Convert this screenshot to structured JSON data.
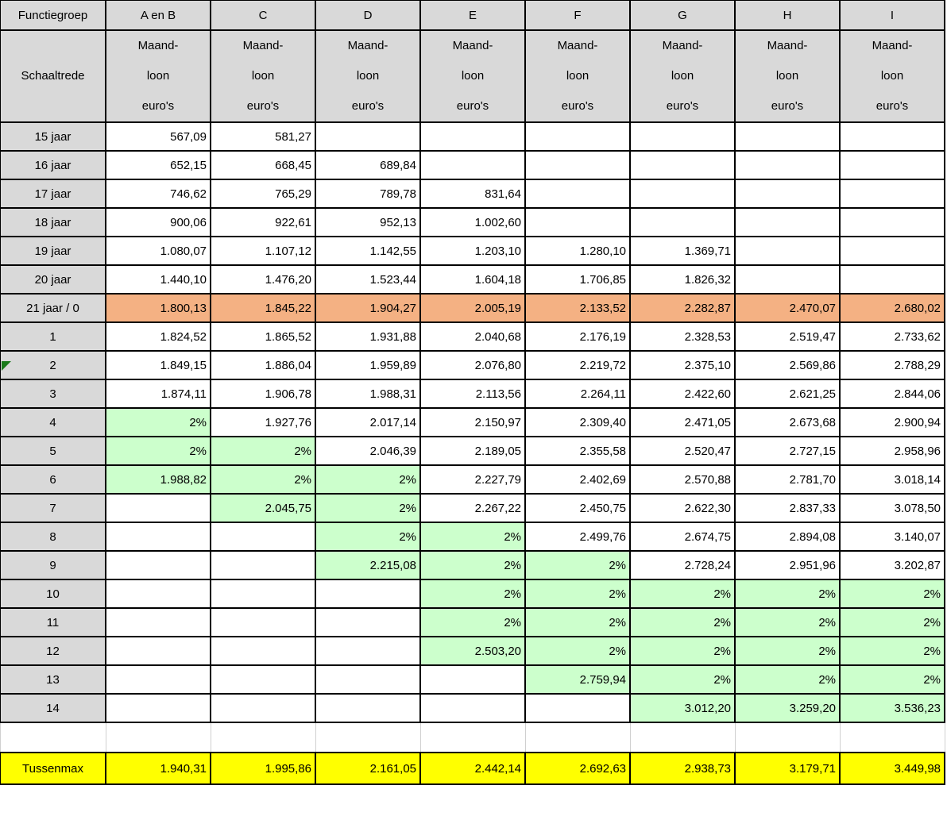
{
  "header": {
    "row_label": "Functiegroep",
    "groups": [
      "A en B",
      "C",
      "D",
      "E",
      "F",
      "G",
      "H",
      "I"
    ],
    "sub_label": "Schaaltrede",
    "sub_lines": [
      "Maand-",
      "loon",
      "euro's"
    ]
  },
  "colors": {
    "header": "#d9d9d9",
    "start_row": "#f4b183",
    "increment": "#ccffcc",
    "tussenmax": "#ffff00"
  },
  "rows": [
    {
      "label": "15 jaar",
      "cells": [
        "567,09",
        "581,27",
        "",
        "",
        "",
        "",
        "",
        ""
      ],
      "green": []
    },
    {
      "label": "16 jaar",
      "cells": [
        "652,15",
        "668,45",
        "689,84",
        "",
        "",
        "",
        "",
        ""
      ],
      "green": []
    },
    {
      "label": "17 jaar",
      "cells": [
        "746,62",
        "765,29",
        "789,78",
        "831,64",
        "",
        "",
        "",
        ""
      ],
      "green": []
    },
    {
      "label": "18 jaar",
      "cells": [
        "900,06",
        "922,61",
        "952,13",
        "1.002,60",
        "",
        "",
        "",
        ""
      ],
      "green": []
    },
    {
      "label": "19 jaar",
      "cells": [
        "1.080,07",
        "1.107,12",
        "1.142,55",
        "1.203,10",
        "1.280,10",
        "1.369,71",
        "",
        ""
      ],
      "green": []
    },
    {
      "label": "20 jaar",
      "cells": [
        "1.440,10",
        "1.476,20",
        "1.523,44",
        "1.604,18",
        "1.706,85",
        "1.826,32",
        "",
        ""
      ],
      "green": []
    },
    {
      "label": "21 jaar / 0",
      "cells": [
        "1.800,13",
        "1.845,22",
        "1.904,27",
        "2.005,19",
        "2.133,52",
        "2.282,87",
        "2.470,07",
        "2.680,02"
      ],
      "green": [],
      "orange": true
    },
    {
      "label": "1",
      "cells": [
        "1.824,52",
        "1.865,52",
        "1.931,88",
        "2.040,68",
        "2.176,19",
        "2.328,53",
        "2.519,47",
        "2.733,62"
      ],
      "green": []
    },
    {
      "label": "2",
      "cells": [
        "1.849,15",
        "1.886,04",
        "1.959,89",
        "2.076,80",
        "2.219,72",
        "2.375,10",
        "2.569,86",
        "2.788,29"
      ],
      "green": []
    },
    {
      "label": "3",
      "cells": [
        "1.874,11",
        "1.906,78",
        "1.988,31",
        "2.113,56",
        "2.264,11",
        "2.422,60",
        "2.621,25",
        "2.844,06"
      ],
      "green": []
    },
    {
      "label": "4",
      "cells": [
        "2%",
        "1.927,76",
        "2.017,14",
        "2.150,97",
        "2.309,40",
        "2.471,05",
        "2.673,68",
        "2.900,94"
      ],
      "green": [
        0
      ]
    },
    {
      "label": "5",
      "cells": [
        "2%",
        "2%",
        "2.046,39",
        "2.189,05",
        "2.355,58",
        "2.520,47",
        "2.727,15",
        "2.958,96"
      ],
      "green": [
        0,
        1
      ]
    },
    {
      "label": "6",
      "cells": [
        "1.988,82",
        "2%",
        "2%",
        "2.227,79",
        "2.402,69",
        "2.570,88",
        "2.781,70",
        "3.018,14"
      ],
      "green": [
        0,
        1,
        2
      ]
    },
    {
      "label": "7",
      "cells": [
        "",
        "2.045,75",
        "2%",
        "2.267,22",
        "2.450,75",
        "2.622,30",
        "2.837,33",
        "3.078,50"
      ],
      "green": [
        1,
        2
      ]
    },
    {
      "label": "8",
      "cells": [
        "",
        "",
        "2%",
        "2%",
        "2.499,76",
        "2.674,75",
        "2.894,08",
        "3.140,07"
      ],
      "green": [
        2,
        3
      ]
    },
    {
      "label": "9",
      "cells": [
        "",
        "",
        "2.215,08",
        "2%",
        "2%",
        "2.728,24",
        "2.951,96",
        "3.202,87"
      ],
      "green": [
        2,
        3,
        4
      ]
    },
    {
      "label": "10",
      "cells": [
        "",
        "",
        "",
        "2%",
        "2%",
        "2%",
        "2%",
        "2%"
      ],
      "green": [
        3,
        4,
        5,
        6,
        7
      ]
    },
    {
      "label": "11",
      "cells": [
        "",
        "",
        "",
        "2%",
        "2%",
        "2%",
        "2%",
        "2%"
      ],
      "green": [
        3,
        4,
        5,
        6,
        7
      ]
    },
    {
      "label": "12",
      "cells": [
        "",
        "",
        "",
        "2.503,20",
        "2%",
        "2%",
        "2%",
        "2%"
      ],
      "green": [
        3,
        4,
        5,
        6,
        7
      ]
    },
    {
      "label": "13",
      "cells": [
        "",
        "",
        "",
        "",
        "2.759,94",
        "2%",
        "2%",
        "2%"
      ],
      "green": [
        4,
        5,
        6,
        7
      ]
    },
    {
      "label": "14",
      "cells": [
        "",
        "",
        "",
        "",
        "",
        "3.012,20",
        "3.259,20",
        "3.536,23"
      ],
      "green": [
        5,
        6,
        7
      ]
    }
  ],
  "tussenmax": {
    "label": "Tussenmax",
    "cells": [
      "1.940,31",
      "1.995,86",
      "2.161,05",
      "2.442,14",
      "2.692,63",
      "2.938,73",
      "3.179,71",
      "3.449,98"
    ]
  }
}
